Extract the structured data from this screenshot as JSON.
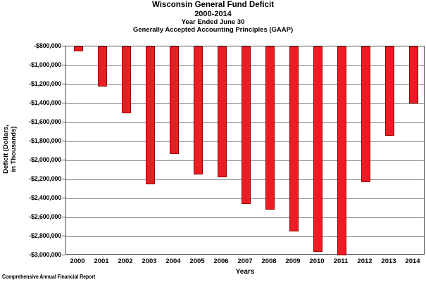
{
  "title": {
    "line1": "Wisconsin General Fund Deficit",
    "line2": "2000-2014",
    "line3": "Year Ended June 30",
    "line4": "Generally Accepted Accounting Principles (GAAP)"
  },
  "y_axis": {
    "label_line1": "Deficit (Dollars,",
    "label_line2": "in Thousands)"
  },
  "x_axis": {
    "label": "Years"
  },
  "footer": {
    "text": "Comprehensive Annual Financial Report"
  },
  "colors": {
    "bar_fill": "#ec1c24",
    "bar_border": "#9b0000",
    "gridline": "#8c8c8c",
    "axis": "#4d4d4d",
    "background": "#ffffff"
  },
  "chart_data": {
    "type": "bar",
    "title": "Wisconsin General Fund Deficit 2000-2014, Year Ended June 30, Generally Accepted Accounting Principles (GAAP)",
    "xlabel": "Years",
    "ylabel": "Deficit (Dollars, in Thousands)",
    "categories": [
      "2000",
      "2001",
      "2002",
      "2003",
      "2004",
      "2005",
      "2006",
      "2007",
      "2008",
      "2009",
      "2010",
      "2011",
      "2012",
      "2013",
      "2014"
    ],
    "values": [
      -850000,
      -1220000,
      -1500000,
      -2250000,
      -1930000,
      -2150000,
      -2180000,
      -2460000,
      -2520000,
      -2750000,
      -2960000,
      -3000000,
      -2230000,
      -1740000,
      -1400000
    ],
    "ylim": [
      -3000000,
      -800000
    ],
    "y_tick_step": 200000,
    "y_tick_labels": [
      "-$800,000",
      "-$1,000,000",
      "-$1,200,000",
      "-$1,400,000",
      "-$1,600,000",
      "-$1,800,000",
      "-$2,000,000",
      "-$2,200,000",
      "-$2,400,000",
      "-$2,600,000",
      "-$2,800,000",
      "-$3,000,000"
    ],
    "grid": true,
    "legend": false,
    "bar_orientation": "vertical-hanging-from-axis-max"
  }
}
